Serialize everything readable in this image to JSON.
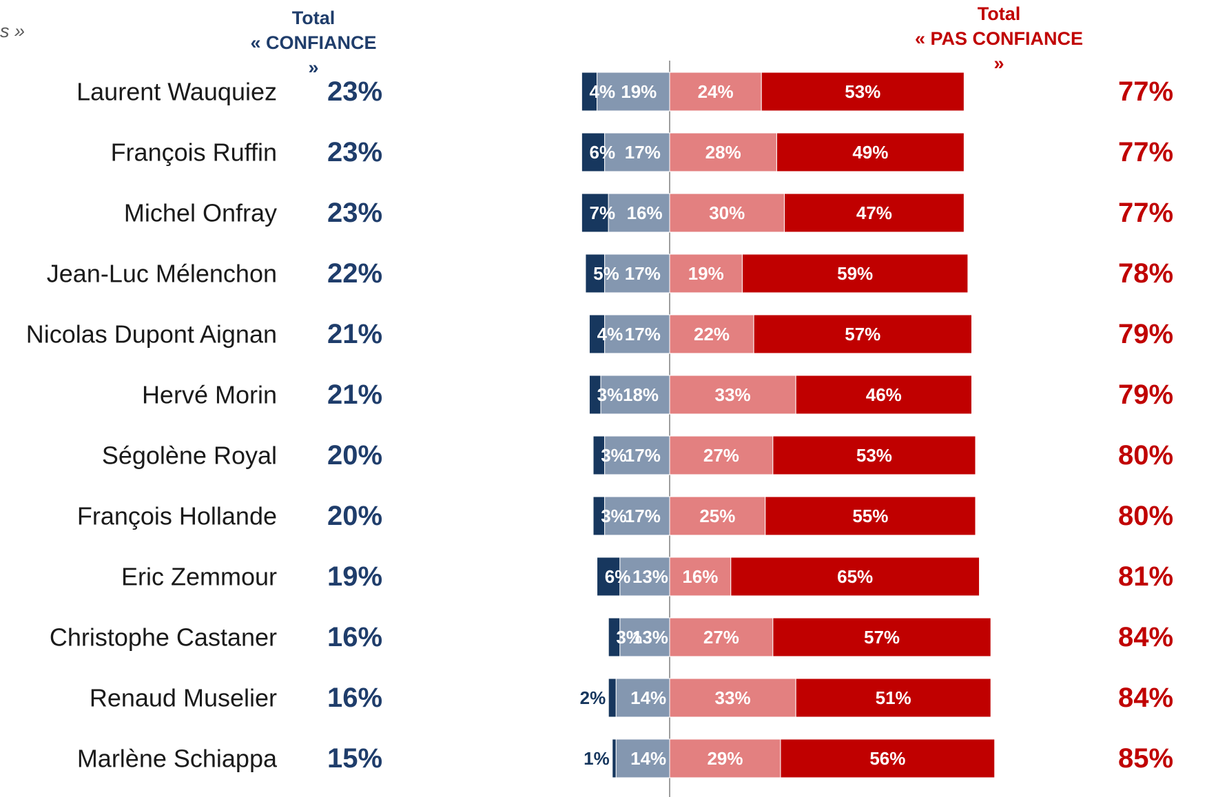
{
  "header": {
    "cut_text": "s »",
    "confiance_line1": "Total",
    "confiance_line2": "« CONFIANCE »",
    "pas_confiance_line1": "Total",
    "pas_confiance_line2": "« PAS CONFIANCE »"
  },
  "colors": {
    "total_confiance": "#1f3d6b",
    "total_pas_confiance": "#c00000",
    "tout_a_fait_confiance": "#17375e",
    "plutot_confiance": "#8497b0",
    "plutot_pas_confiance": "#e38080",
    "pas_du_tout_confiance": "#c00000",
    "name_text": "#1a1a1a"
  },
  "chart_data": {
    "type": "bar",
    "orientation": "horizontal-diverging",
    "categories": [
      "Laurent Wauquiez",
      "François Ruffin",
      "Michel Onfray",
      "Jean-Luc Mélenchon",
      "Nicolas Dupont Aignan",
      "Hervé Morin",
      "Ségolène Royal",
      "François Hollande",
      "Eric Zemmour",
      "Christophe Castaner",
      "Renaud Muselier",
      "Marlène Schiappa"
    ],
    "series": [
      {
        "values": [
          4,
          6,
          7,
          5,
          4,
          3,
          3,
          3,
          6,
          3,
          2,
          1
        ]
      },
      {
        "values": [
          19,
          17,
          16,
          17,
          17,
          18,
          17,
          17,
          13,
          13,
          14,
          14
        ]
      },
      {
        "values": [
          24,
          28,
          30,
          19,
          22,
          33,
          27,
          25,
          16,
          27,
          33,
          29
        ]
      },
      {
        "values": [
          53,
          49,
          47,
          59,
          57,
          46,
          53,
          55,
          65,
          57,
          51,
          56
        ]
      }
    ],
    "total_confiance": [
      "23%",
      "23%",
      "23%",
      "22%",
      "21%",
      "21%",
      "20%",
      "20%",
      "19%",
      "16%",
      "16%",
      "15%"
    ],
    "total_pas_confiance": [
      "77%",
      "77%",
      "77%",
      "78%",
      "79%",
      "79%",
      "80%",
      "80%",
      "81%",
      "84%",
      "84%",
      "85%"
    ],
    "unit": "%"
  }
}
